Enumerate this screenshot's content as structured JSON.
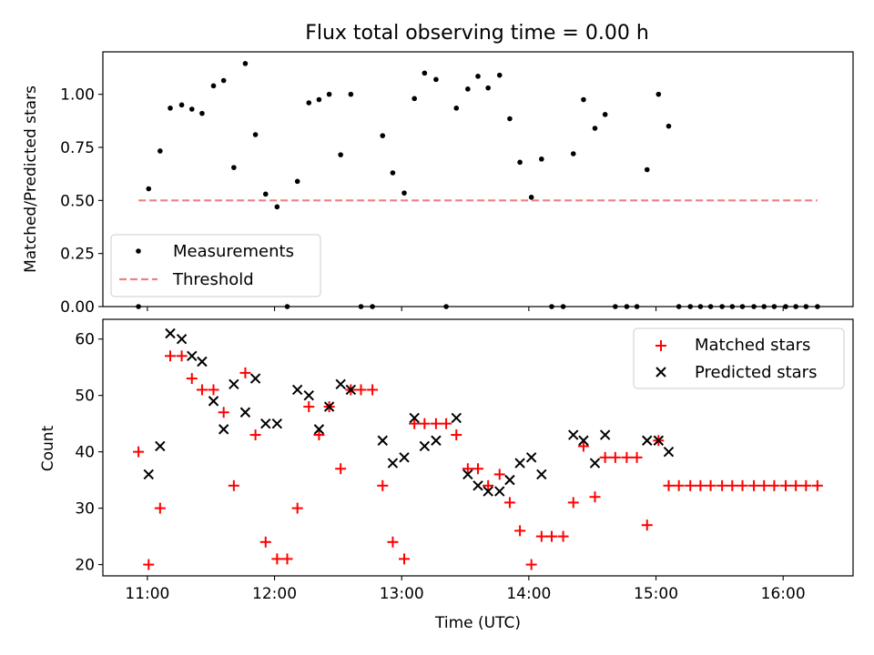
{
  "chart_data": [
    {
      "type": "scatter",
      "title": "Flux total observing time = 0.00 h",
      "xlabel": "",
      "ylabel": "Matched/Predicted stars",
      "xlim": [
        10.65,
        16.55
      ],
      "ylim": [
        0,
        1.2
      ],
      "yticks": [
        0,
        0.25,
        0.5,
        0.75,
        1.0
      ],
      "ytick_labels": [
        "0.00",
        "0.25",
        "0.50",
        "0.75",
        "1.00"
      ],
      "xticks": [
        11,
        12,
        13,
        14,
        15,
        16
      ],
      "legend": {
        "position": "lower-left",
        "entries": [
          "Measurements",
          "Threshold"
        ]
      },
      "threshold": {
        "name": "Threshold",
        "y": 0.5,
        "x": [
          10.93,
          16.27
        ],
        "color": "#f08080",
        "style": "dashed"
      },
      "series": [
        {
          "name": "Measurements",
          "color": "#000000",
          "marker": "dot",
          "points": [
            [
              10.93,
              0.0
            ],
            [
              11.01,
              0.555
            ],
            [
              11.1,
              0.733
            ],
            [
              11.18,
              0.935
            ],
            [
              11.27,
              0.95
            ],
            [
              11.35,
              0.93
            ],
            [
              11.43,
              0.91
            ],
            [
              11.52,
              1.04
            ],
            [
              11.6,
              1.065
            ],
            [
              11.68,
              0.655
            ],
            [
              11.77,
              1.145
            ],
            [
              11.85,
              0.81
            ],
            [
              11.93,
              0.53
            ],
            [
              12.02,
              0.47
            ],
            [
              12.1,
              0.0
            ],
            [
              12.18,
              0.59
            ],
            [
              12.27,
              0.96
            ],
            [
              12.35,
              0.975
            ],
            [
              12.43,
              1.0
            ],
            [
              12.52,
              0.715
            ],
            [
              12.6,
              1.0
            ],
            [
              12.68,
              0.0
            ],
            [
              12.77,
              0.0
            ],
            [
              12.85,
              0.805
            ],
            [
              12.93,
              0.63
            ],
            [
              13.02,
              0.535
            ],
            [
              13.1,
              0.98
            ],
            [
              13.18,
              1.1
            ],
            [
              13.27,
              1.07
            ],
            [
              13.35,
              0.0
            ],
            [
              13.43,
              0.935
            ],
            [
              13.52,
              1.025
            ],
            [
              13.6,
              1.085
            ],
            [
              13.68,
              1.03
            ],
            [
              13.77,
              1.09
            ],
            [
              13.85,
              0.885
            ],
            [
              13.93,
              0.68
            ],
            [
              14.02,
              0.515
            ],
            [
              14.1,
              0.695
            ],
            [
              14.18,
              0.0
            ],
            [
              14.27,
              0.0
            ],
            [
              14.35,
              0.72
            ],
            [
              14.43,
              0.975
            ],
            [
              14.52,
              0.84
            ],
            [
              14.6,
              0.905
            ],
            [
              14.68,
              0.0
            ],
            [
              14.77,
              0.0
            ],
            [
              14.85,
              0.0
            ],
            [
              14.93,
              0.645
            ],
            [
              15.02,
              1.0
            ],
            [
              15.1,
              0.85
            ],
            [
              15.18,
              0.0
            ],
            [
              15.27,
              0.0
            ],
            [
              15.35,
              0.0
            ],
            [
              15.43,
              0.0
            ],
            [
              15.52,
              0.0
            ],
            [
              15.6,
              0.0
            ],
            [
              15.68,
              0.0
            ],
            [
              15.77,
              0.0
            ],
            [
              15.85,
              0.0
            ],
            [
              15.93,
              0.0
            ],
            [
              16.02,
              0.0
            ],
            [
              16.1,
              0.0
            ],
            [
              16.18,
              0.0
            ],
            [
              16.27,
              0.0
            ]
          ]
        }
      ]
    },
    {
      "type": "scatter",
      "title": "",
      "xlabel": "Time (UTC)",
      "ylabel": "Count",
      "xlim": [
        10.65,
        16.55
      ],
      "ylim": [
        18,
        63.5
      ],
      "yticks": [
        20,
        30,
        40,
        50,
        60
      ],
      "ytick_labels": [
        "20",
        "30",
        "40",
        "50",
        "60"
      ],
      "xticks": [
        11,
        12,
        13,
        14,
        15,
        16
      ],
      "xtick_labels": [
        "11:00",
        "12:00",
        "13:00",
        "14:00",
        "15:00",
        "16:00"
      ],
      "legend": {
        "position": "top-right",
        "entries": [
          "Matched stars",
          "Predicted stars"
        ]
      },
      "series": [
        {
          "name": "Matched stars",
          "color": "#ff0000",
          "marker": "plus",
          "points": [
            [
              10.93,
              40
            ],
            [
              11.01,
              20
            ],
            [
              11.1,
              30
            ],
            [
              11.18,
              57
            ],
            [
              11.27,
              57
            ],
            [
              11.35,
              53
            ],
            [
              11.43,
              51
            ],
            [
              11.52,
              51
            ],
            [
              11.6,
              47
            ],
            [
              11.68,
              34
            ],
            [
              11.77,
              54
            ],
            [
              11.85,
              43
            ],
            [
              11.93,
              24
            ],
            [
              12.02,
              21
            ],
            [
              12.1,
              21
            ],
            [
              12.18,
              30
            ],
            [
              12.27,
              48
            ],
            [
              12.35,
              43
            ],
            [
              12.43,
              48
            ],
            [
              12.52,
              37
            ],
            [
              12.6,
              51
            ],
            [
              12.68,
              51
            ],
            [
              12.77,
              51
            ],
            [
              12.85,
              34
            ],
            [
              12.93,
              24
            ],
            [
              13.02,
              21
            ],
            [
              13.1,
              45
            ],
            [
              13.18,
              45
            ],
            [
              13.27,
              45
            ],
            [
              13.35,
              45
            ],
            [
              13.43,
              43
            ],
            [
              13.52,
              37
            ],
            [
              13.6,
              37
            ],
            [
              13.68,
              34
            ],
            [
              13.77,
              36
            ],
            [
              13.85,
              31
            ],
            [
              13.93,
              26
            ],
            [
              14.02,
              20
            ],
            [
              14.1,
              25
            ],
            [
              14.18,
              25
            ],
            [
              14.27,
              25
            ],
            [
              14.35,
              31
            ],
            [
              14.43,
              41
            ],
            [
              14.52,
              32
            ],
            [
              14.6,
              39
            ],
            [
              14.68,
              39
            ],
            [
              14.77,
              39
            ],
            [
              14.85,
              39
            ],
            [
              14.93,
              27
            ],
            [
              15.02,
              42
            ],
            [
              15.1,
              34
            ],
            [
              15.18,
              34
            ],
            [
              15.27,
              34
            ],
            [
              15.35,
              34
            ],
            [
              15.43,
              34
            ],
            [
              15.52,
              34
            ],
            [
              15.6,
              34
            ],
            [
              15.68,
              34
            ],
            [
              15.77,
              34
            ],
            [
              15.85,
              34
            ],
            [
              15.93,
              34
            ],
            [
              16.02,
              34
            ],
            [
              16.1,
              34
            ],
            [
              16.18,
              34
            ],
            [
              16.27,
              34
            ]
          ]
        },
        {
          "name": "Predicted stars",
          "color": "#000000",
          "marker": "x",
          "points": [
            [
              11.01,
              36
            ],
            [
              11.1,
              41
            ],
            [
              11.18,
              61
            ],
            [
              11.27,
              60
            ],
            [
              11.35,
              57
            ],
            [
              11.43,
              56
            ],
            [
              11.52,
              49
            ],
            [
              11.6,
              44
            ],
            [
              11.68,
              52
            ],
            [
              11.77,
              47
            ],
            [
              11.85,
              53
            ],
            [
              11.93,
              45
            ],
            [
              12.02,
              45
            ],
            [
              12.18,
              51
            ],
            [
              12.27,
              50
            ],
            [
              12.35,
              44
            ],
            [
              12.43,
              48
            ],
            [
              12.52,
              52
            ],
            [
              12.6,
              51
            ],
            [
              12.85,
              42
            ],
            [
              12.93,
              38
            ],
            [
              13.02,
              39
            ],
            [
              13.1,
              46
            ],
            [
              13.18,
              41
            ],
            [
              13.27,
              42
            ],
            [
              13.43,
              46
            ],
            [
              13.52,
              36
            ],
            [
              13.6,
              34
            ],
            [
              13.68,
              33
            ],
            [
              13.77,
              33
            ],
            [
              13.85,
              35
            ],
            [
              13.93,
              38
            ],
            [
              14.02,
              39
            ],
            [
              14.1,
              36
            ],
            [
              14.35,
              43
            ],
            [
              14.43,
              42
            ],
            [
              14.52,
              38
            ],
            [
              14.6,
              43
            ],
            [
              14.93,
              42
            ],
            [
              15.02,
              42
            ],
            [
              15.1,
              40
            ]
          ]
        }
      ]
    }
  ]
}
